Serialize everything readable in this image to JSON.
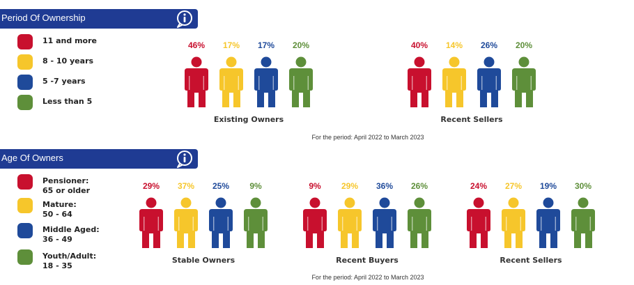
{
  "colors": {
    "red": "#c8102e",
    "yellow": "#f6c62b",
    "blue": "#1f4a9a",
    "green": "#5e8f3a",
    "header": "#1f3b93"
  },
  "icons": {
    "info": "info-icon",
    "person": "person-icon"
  },
  "sections": [
    {
      "id": "ownership",
      "title": "Period Of Ownership",
      "legend": [
        {
          "label": "11 and more",
          "sub": "",
          "color": "#c8102e"
        },
        {
          "label": "8 - 10 years",
          "sub": "",
          "color": "#f6c62b"
        },
        {
          "label": "5 -7 years",
          "sub": "",
          "color": "#1f4a9a"
        },
        {
          "label": "Less than 5",
          "sub": "",
          "color": "#5e8f3a"
        }
      ],
      "period_note": "For the period: April 2022 to March 2023"
    },
    {
      "id": "age",
      "title": "Age Of Owners",
      "legend": [
        {
          "label": "Pensioner:",
          "sub": "65 or older",
          "color": "#c8102e"
        },
        {
          "label": "Mature:",
          "sub": "50 - 64",
          "color": "#f6c62b"
        },
        {
          "label": "Middle Aged:",
          "sub": "36 - 49",
          "color": "#1f4a9a"
        },
        {
          "label": "Youth/Adult:",
          "sub": "18 - 35",
          "color": "#5e8f3a"
        }
      ],
      "period_note": "For the period: April 2022 to March 2023"
    }
  ],
  "chart_data": [
    {
      "type": "bar",
      "title": "Period Of Ownership",
      "categories": [
        "11 and more",
        "8 - 10 years",
        "5 -7 years",
        "Less than 5"
      ],
      "series": [
        {
          "name": "Existing Owners",
          "values": [
            46,
            17,
            17,
            20
          ],
          "labels": [
            "46%",
            "17%",
            "17%",
            "20%"
          ]
        },
        {
          "name": "Recent Sellers",
          "values": [
            40,
            14,
            26,
            20
          ],
          "labels": [
            "40%",
            "14%",
            "26%",
            "20%"
          ]
        }
      ]
    },
    {
      "type": "bar",
      "title": "Age Of Owners",
      "categories": [
        "Pensioner: 65 or older",
        "Mature: 50 - 64",
        "Middle Aged: 36 - 49",
        "Youth/Adult: 18 - 35"
      ],
      "series": [
        {
          "name": "Stable Owners",
          "values": [
            29,
            37,
            25,
            9
          ],
          "labels": [
            "29%",
            "37%",
            "25%",
            "9%"
          ]
        },
        {
          "name": "Recent Buyers",
          "values": [
            9,
            29,
            36,
            26
          ],
          "labels": [
            "9%",
            "29%",
            "36%",
            "26%"
          ]
        },
        {
          "name": "Recent Sellers",
          "values": [
            24,
            27,
            19,
            30
          ],
          "labels": [
            "24%",
            "27%",
            "19%",
            "30%"
          ]
        }
      ]
    }
  ]
}
